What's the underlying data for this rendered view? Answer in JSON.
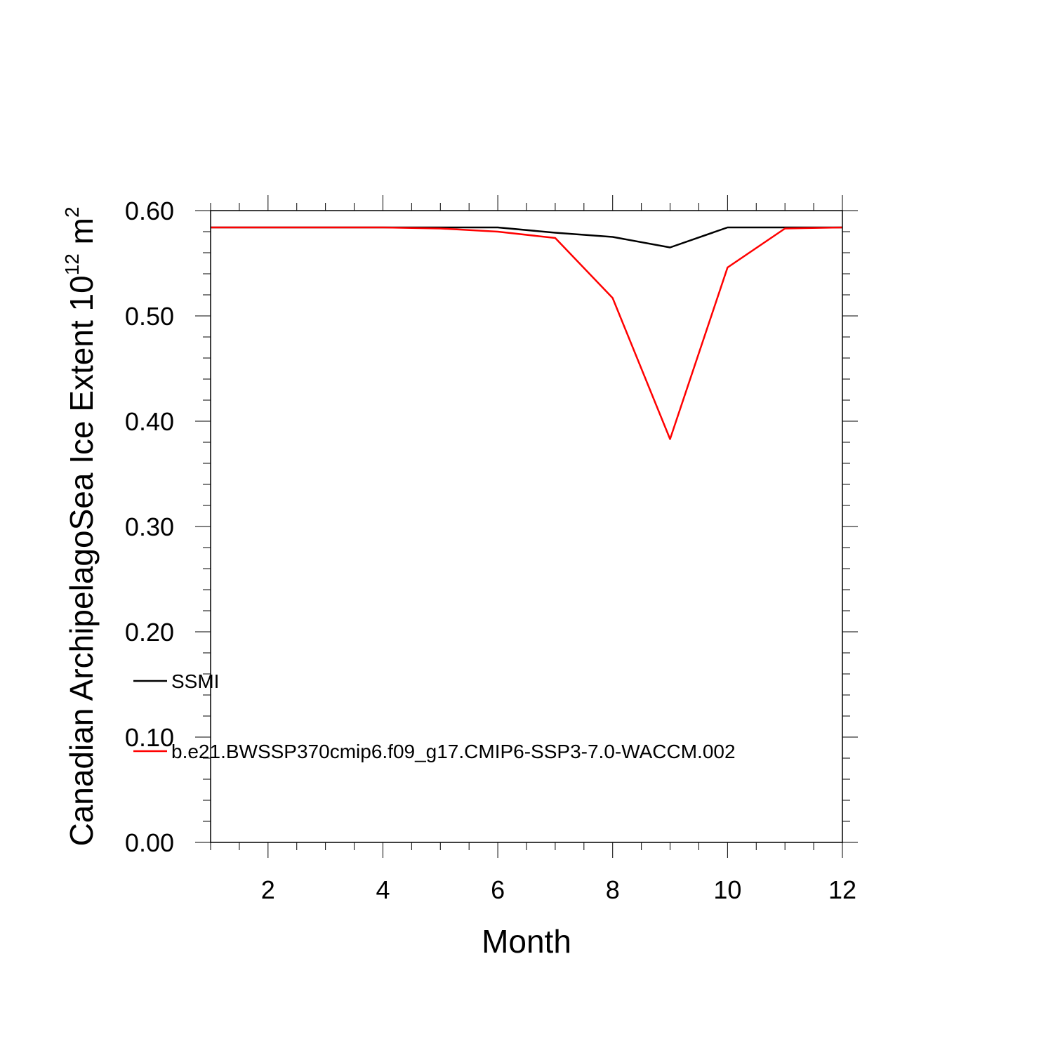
{
  "chart_data": {
    "type": "line",
    "title": "",
    "xlabel": "Month",
    "ylabel": "Canadian ArchipelagoSea Ice Extent 10",
    "ylabel_superscript": "12",
    "ylabel_unit": " m",
    "ylabel_unit_superscript": "2",
    "xlim": [
      1,
      12
    ],
    "ylim": [
      0,
      0.6
    ],
    "x_ticks": [
      2,
      4,
      6,
      8,
      10,
      12
    ],
    "x_tick_labels": [
      "2",
      "4",
      "6",
      "8",
      "10",
      "12"
    ],
    "y_ticks": [
      0,
      0.1,
      0.2,
      0.3,
      0.4,
      0.5,
      0.6
    ],
    "y_tick_labels": [
      "0.00",
      "0.10",
      "0.20",
      "0.30",
      "0.40",
      "0.50",
      "0.60"
    ],
    "grid": false,
    "legend_position": "lower-left",
    "x": [
      1,
      2,
      3,
      4,
      5,
      6,
      7,
      8,
      9,
      10,
      11,
      12
    ],
    "series": [
      {
        "name": "SSMI",
        "color": "#000000",
        "values": [
          0.584,
          0.584,
          0.584,
          0.584,
          0.584,
          0.584,
          0.579,
          0.575,
          0.565,
          0.584,
          0.584,
          0.584
        ]
      },
      {
        "name": "b.e21.BWSSP370cmip6.f09_g17.CMIP6-SSP3-7.0-WACCM.002",
        "color": "#ff0000",
        "values": [
          0.584,
          0.584,
          0.584,
          0.584,
          0.583,
          0.58,
          0.574,
          0.517,
          0.383,
          0.546,
          0.583,
          0.584
        ]
      }
    ]
  }
}
